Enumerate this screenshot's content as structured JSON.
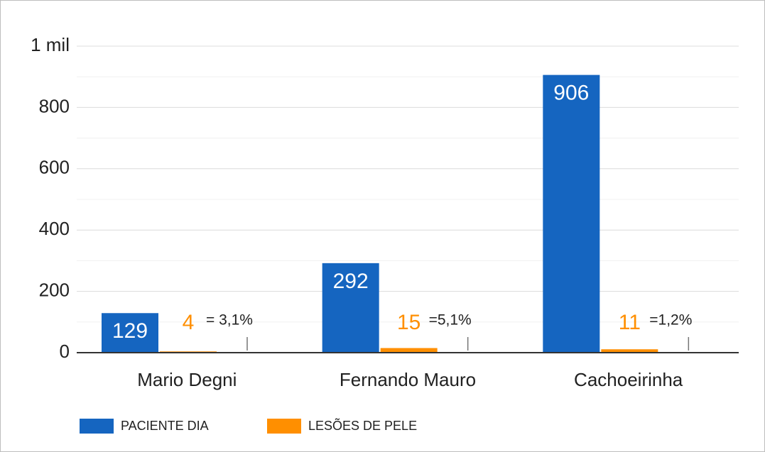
{
  "chart_data": {
    "type": "bar",
    "categories": [
      "Mario Degni",
      "Fernando Mauro",
      "Cachoeirinha"
    ],
    "series": [
      {
        "name": "PACIENTE DIA",
        "color": "#1565c0",
        "values": [
          129,
          292,
          906
        ]
      },
      {
        "name": "LESÕES DE PELE",
        "color": "#ff8f00",
        "values": [
          4,
          15,
          11
        ]
      }
    ],
    "annotations": [
      "= 3,1%",
      "=5,1%",
      "=1,2%"
    ],
    "ylim": [
      0,
      1000
    ],
    "yticks": [
      0,
      200,
      400,
      600,
      800,
      {
        "value": 1000,
        "label": "1 mil"
      }
    ],
    "minor_yticks": [
      100,
      300,
      500,
      700,
      900
    ],
    "grid": true,
    "legend": "bottom"
  }
}
